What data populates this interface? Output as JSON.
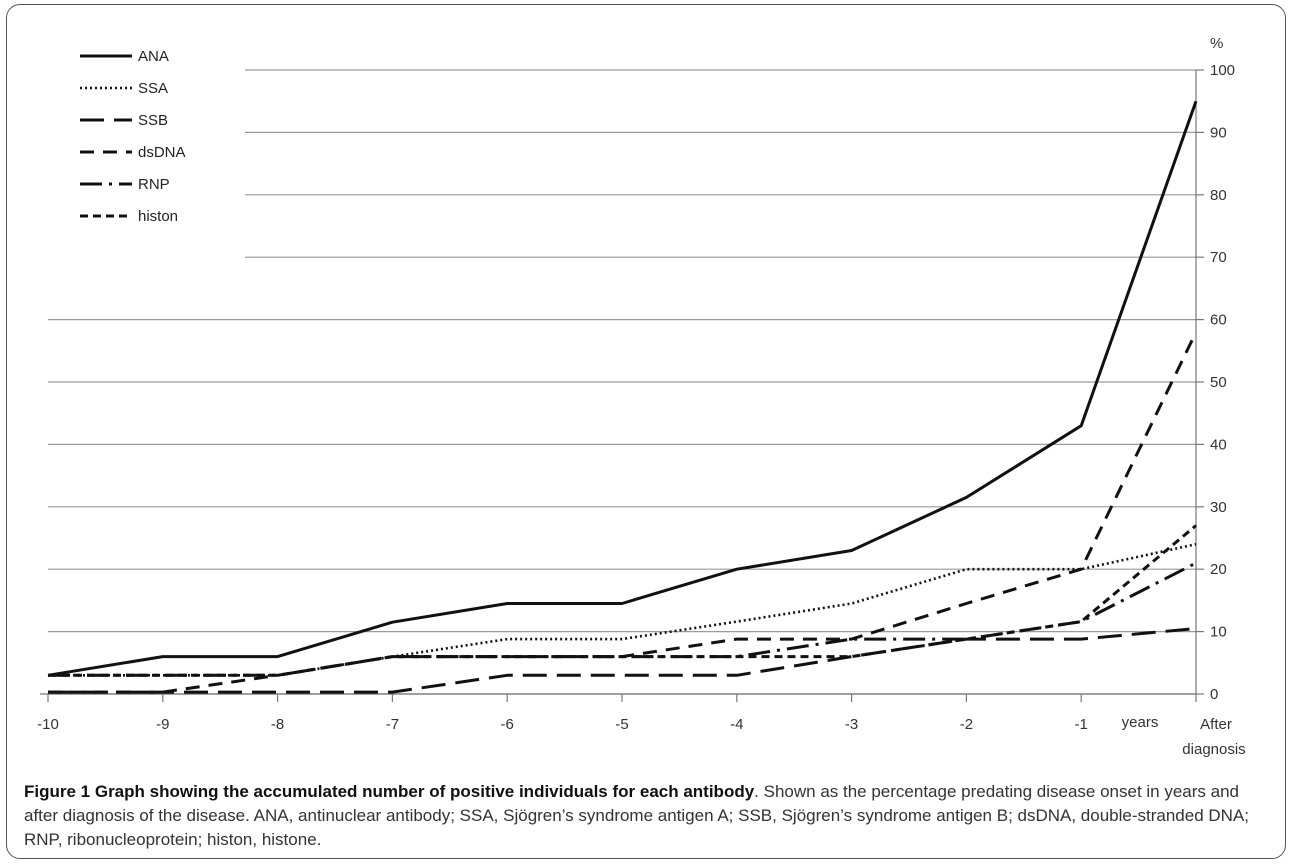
{
  "chart_data": {
    "type": "line",
    "y_unit": "%",
    "ylim": [
      0,
      100
    ],
    "y_ticks": [
      0,
      10,
      20,
      30,
      40,
      50,
      60,
      70,
      80,
      90,
      100
    ],
    "categories": [
      "-10",
      "-9",
      "-8",
      "-7",
      "-6",
      "-5",
      "-4",
      "-3",
      "-2",
      "-1",
      "After diagnosis"
    ],
    "x_tick_labels": [
      "-10",
      "-9",
      "-8",
      "-7",
      "-6",
      "-5",
      "-4",
      "-3",
      "-2",
      "-1",
      "After",
      "diagnosis"
    ],
    "x_axis_note": "years",
    "grid": true,
    "legend_placement": "top-left",
    "series": [
      {
        "name": "ANA",
        "style": "solid",
        "values": [
          3,
          6,
          6,
          11.5,
          14.5,
          14.5,
          20,
          23,
          31.5,
          43,
          95
        ]
      },
      {
        "name": "SSA",
        "style": "dotted",
        "values": [
          3,
          3,
          3,
          6,
          8.8,
          8.8,
          11.6,
          14.5,
          20,
          20,
          24
        ]
      },
      {
        "name": "SSB",
        "style": "longdash",
        "values": [
          0.3,
          0.3,
          0.3,
          0.3,
          3,
          3,
          3,
          6,
          8.8,
          8.8,
          10.5
        ]
      },
      {
        "name": "dsDNA",
        "style": "dash",
        "values": [
          0.3,
          0.3,
          3,
          6,
          6,
          6,
          8.8,
          8.8,
          14.5,
          20,
          58
        ]
      },
      {
        "name": "RNP",
        "style": "dashdot",
        "values": [
          3,
          3,
          3,
          6,
          6,
          6,
          6,
          8.8,
          8.8,
          11.6,
          21
        ]
      },
      {
        "name": "histon",
        "style": "shortdash",
        "values": [
          3,
          3,
          3,
          6,
          6,
          6,
          6,
          6,
          8.8,
          11.6,
          27
        ]
      }
    ]
  },
  "caption": {
    "bold": "Figure 1 Graph showing the accumulated number of positive individuals for each antibody",
    "text": ". Shown as the percentage predating disease onset in years and after diagnosis of the disease. ANA, antinuclear antibody; SSA, Sjögren’s syndrome antigen A; SSB, Sjögren’s syndrome antigen B; dsDNA, double-stranded DNA; RNP, ribonucleoprotein; histon, histone."
  }
}
